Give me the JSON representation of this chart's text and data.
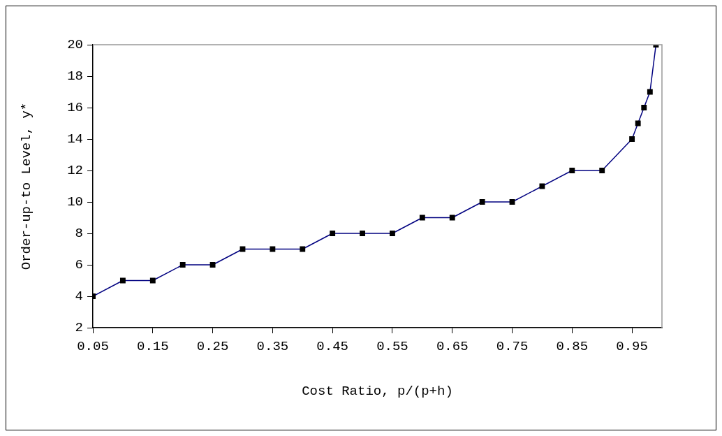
{
  "chart_data": {
    "type": "line",
    "xlabel": "Cost Ratio, p/(p+h)",
    "ylabel": "Order-up-to Level, y*",
    "x": [
      0.05,
      0.1,
      0.15,
      0.2,
      0.25,
      0.3,
      0.35,
      0.4,
      0.45,
      0.5,
      0.55,
      0.6,
      0.65,
      0.7,
      0.75,
      0.8,
      0.85,
      0.9,
      0.95,
      0.96,
      0.97,
      0.98,
      0.99
    ],
    "series": [
      {
        "color": "#000080",
        "values": [
          4,
          5,
          5,
          6,
          6,
          7,
          7,
          7,
          8,
          8,
          8,
          9,
          9,
          10,
          10,
          11,
          12,
          12,
          14,
          15,
          16,
          17,
          20
        ]
      }
    ],
    "xlim": [
      0.05,
      1.0
    ],
    "xticks": [
      0.05,
      0.15,
      0.25,
      0.35,
      0.45,
      0.55,
      0.65,
      0.75,
      0.85,
      0.95
    ],
    "ylim": [
      2,
      20
    ],
    "yticks": [
      2,
      4,
      6,
      8,
      10,
      12,
      14,
      16,
      18,
      20
    ],
    "marker": "square",
    "line_style": "solid",
    "grid": false,
    "legend": false
  }
}
